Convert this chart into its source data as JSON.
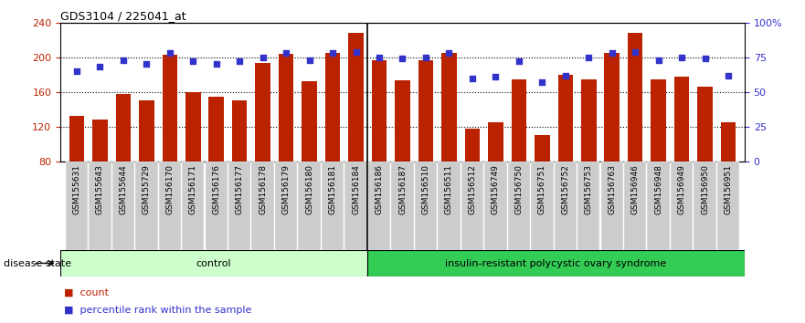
{
  "title": "GDS3104 / 225041_at",
  "samples": [
    "GSM155631",
    "GSM155643",
    "GSM155644",
    "GSM155729",
    "GSM156170",
    "GSM156171",
    "GSM156176",
    "GSM156177",
    "GSM156178",
    "GSM156179",
    "GSM156180",
    "GSM156181",
    "GSM156184",
    "GSM156186",
    "GSM156187",
    "GSM156510",
    "GSM156511",
    "GSM156512",
    "GSM156749",
    "GSM156750",
    "GSM156751",
    "GSM156752",
    "GSM156753",
    "GSM156763",
    "GSM156946",
    "GSM156948",
    "GSM156949",
    "GSM156950",
    "GSM156951"
  ],
  "bar_values": [
    133,
    128,
    158,
    150,
    203,
    160,
    155,
    150,
    193,
    204,
    172,
    205,
    228,
    197,
    174,
    197,
    205,
    118,
    125,
    175,
    110,
    180,
    175,
    205,
    228,
    175,
    178,
    166,
    125
  ],
  "percentile_values": [
    65,
    68,
    73,
    70,
    78,
    72,
    70,
    72,
    75,
    78,
    73,
    78,
    79,
    75,
    74,
    75,
    78,
    60,
    61,
    72,
    57,
    62,
    75,
    78,
    79,
    73,
    75,
    74,
    62
  ],
  "group1_count": 13,
  "group2_count": 16,
  "group1_label": "control",
  "group2_label": "insulin-resistant polycystic ovary syndrome",
  "ylim_left": [
    80,
    240
  ],
  "ylim_right": [
    0,
    100
  ],
  "yticks_left": [
    80,
    120,
    160,
    200,
    240
  ],
  "yticks_right": [
    0,
    25,
    50,
    75,
    100
  ],
  "yticklabels_right": [
    "0",
    "25",
    "50",
    "75",
    "100%"
  ],
  "bar_color": "#BB2200",
  "dot_color": "#3333CC",
  "group1_bg": "#CCFFCC",
  "group2_bg": "#33CC55",
  "xtick_bg": "#CCCCCC",
  "bar_width": 0.65,
  "disease_state_label": "disease state"
}
